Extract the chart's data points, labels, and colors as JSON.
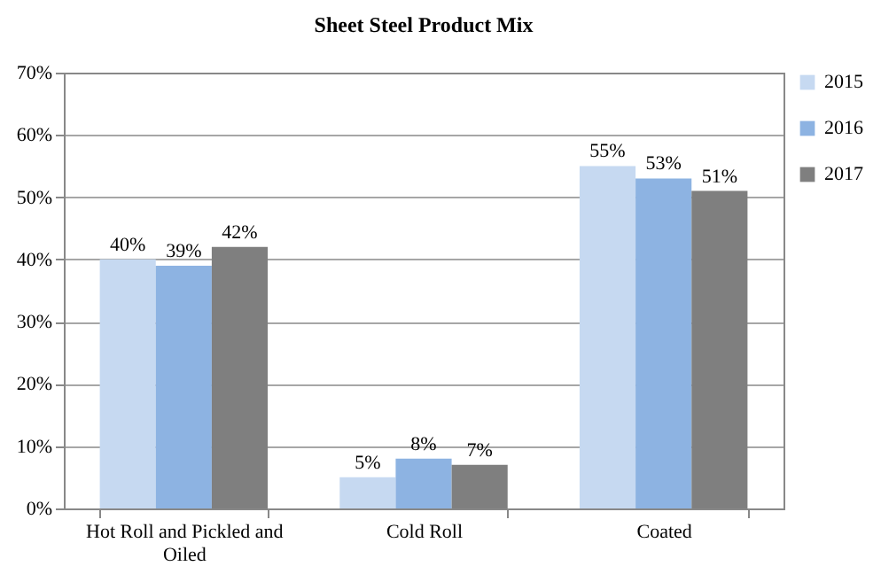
{
  "chart_data": {
    "type": "bar",
    "title": "Sheet Steel Product  Mix",
    "categories": [
      "Hot Roll and Pickled and Oiled",
      "Cold Roll",
      "Coated"
    ],
    "series": [
      {
        "name": "2015",
        "color": "#c6d9f1",
        "values": [
          40,
          5,
          55
        ],
        "value_labels": [
          "40%",
          "5%",
          "55%"
        ]
      },
      {
        "name": "2016",
        "color": "#8db3e2",
        "values": [
          39,
          8,
          53
        ],
        "value_labels": [
          "39%",
          "8%",
          "53%"
        ]
      },
      {
        "name": "2017",
        "color": "#7f7f7f",
        "values": [
          42,
          7,
          51
        ],
        "value_labels": [
          "42%",
          "7%",
          "51%"
        ]
      }
    ],
    "ylim": [
      0,
      70
    ],
    "yticks": [
      {
        "value": 0,
        "label": "0%"
      },
      {
        "value": 10,
        "label": "10%"
      },
      {
        "value": 20,
        "label": "20%"
      },
      {
        "value": 30,
        "label": "30%"
      },
      {
        "value": 40,
        "label": "40%"
      },
      {
        "value": 50,
        "label": "50%"
      },
      {
        "value": 60,
        "label": "60%"
      },
      {
        "value": 70,
        "label": "70%"
      }
    ],
    "grid": "y",
    "legend": "right"
  }
}
